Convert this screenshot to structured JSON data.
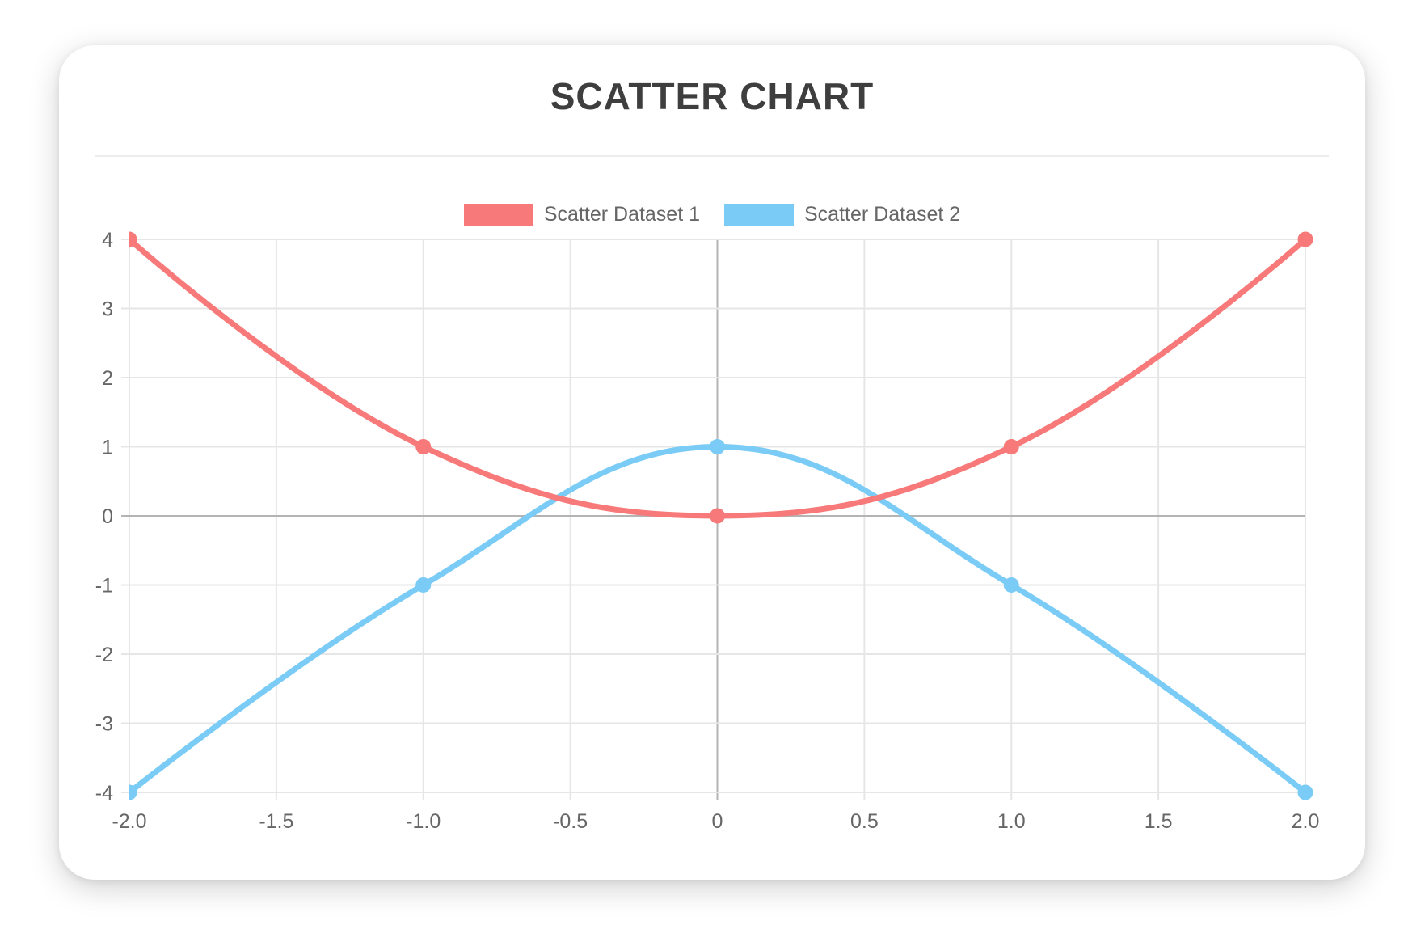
{
  "card": {
    "title": "SCATTER CHART"
  },
  "chart_data": {
    "type": "scatter",
    "title": "SCATTER CHART",
    "show_line": true,
    "line_tension": 0.4,
    "legend_position": "top",
    "grid": true,
    "xlim": [
      -2,
      2
    ],
    "ylim": [
      -4,
      4
    ],
    "x_ticks": {
      "values": [
        -2,
        -1.5,
        -1,
        -0.5,
        0,
        0.5,
        1,
        1.5,
        2
      ],
      "labels": [
        "-2.0",
        "-1.5",
        "-1.0",
        "-0.5",
        "0",
        "0.5",
        "1.0",
        "1.5",
        "2.0"
      ]
    },
    "y_ticks": {
      "values": [
        4,
        3,
        2,
        1,
        0,
        -1,
        -2,
        -3,
        -4
      ],
      "labels": [
        "4",
        "3",
        "2",
        "1",
        "0",
        "-1",
        "-2",
        "-3",
        "-4"
      ]
    },
    "series": [
      {
        "name": "Scatter Dataset 1",
        "color": "#f87979",
        "points": [
          [
            -2,
            4
          ],
          [
            -1,
            1
          ],
          [
            0,
            0
          ],
          [
            1,
            1
          ],
          [
            2,
            4
          ]
        ]
      },
      {
        "name": "Scatter Dataset 2",
        "color": "#7acbf5",
        "points": [
          [
            -2,
            -4
          ],
          [
            -1,
            -1
          ],
          [
            0,
            1
          ],
          [
            1,
            -1
          ],
          [
            2,
            -4
          ]
        ]
      }
    ]
  },
  "colors": {
    "title_text": "#3e3e3e",
    "legend_text": "#666666",
    "tick_text": "#666666",
    "grid_line": "#e6e6e6",
    "zero_line": "#b4b4b4",
    "divider": "#ececec",
    "card_background": "#ffffff",
    "page_background": "#ffffff"
  }
}
